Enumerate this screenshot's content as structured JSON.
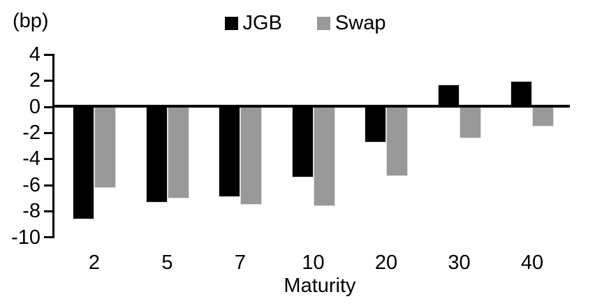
{
  "chart_data": {
    "type": "bar",
    "title": "",
    "unit_label": "(bp)",
    "xlabel": "Maturity",
    "categories": [
      "2",
      "5",
      "7",
      "10",
      "20",
      "30",
      "40"
    ],
    "series": [
      {
        "name": "JGB",
        "color": "#000000",
        "values": [
          -8.6,
          -7.3,
          -6.9,
          -5.4,
          -2.7,
          1.7,
          2.0
        ]
      },
      {
        "name": "Swap",
        "color": "#999999",
        "values": [
          -6.2,
          -7.0,
          -7.5,
          -7.6,
          -5.3,
          -2.4,
          -1.5
        ]
      }
    ],
    "y_axis": {
      "min": -10,
      "max": 4,
      "tick_step": 2,
      "ticks": [
        4,
        2,
        0,
        -2,
        -4,
        -6,
        -8,
        -10
      ]
    },
    "legend_position": "top-center",
    "grid": false,
    "colors": {
      "background": "#ffffff",
      "axis": "#000000"
    }
  }
}
